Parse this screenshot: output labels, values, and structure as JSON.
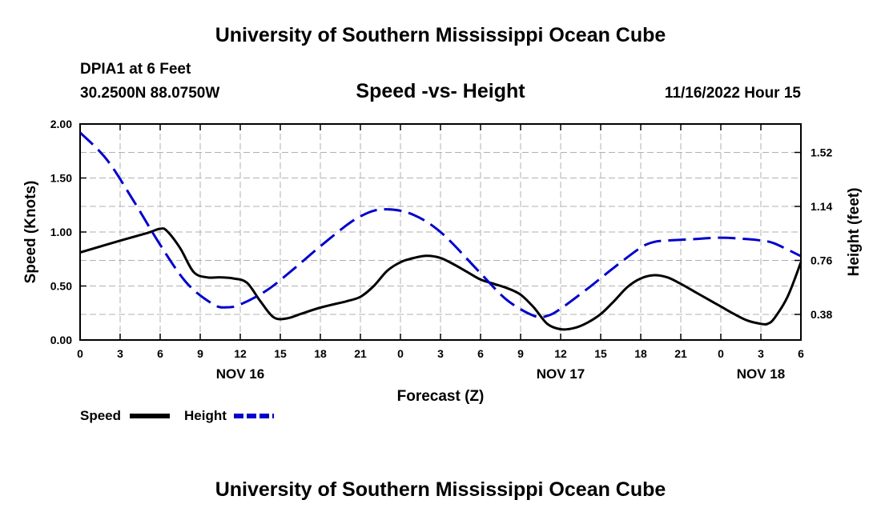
{
  "header": {
    "title": "University of Southern Mississippi Ocean Cube",
    "station": "DPIA1 at 6 Feet",
    "coordinates": "30.2500N   88.0750W",
    "datetime": "11/16/2022 Hour 15"
  },
  "footer": {
    "title": "University of Southern Mississippi Ocean Cube"
  },
  "chart_data": {
    "type": "line",
    "title": "Speed -vs- Height",
    "xlabel": "Forecast (Z)",
    "ylabel": "Speed (Knots)",
    "y2label": "Height (feet)",
    "grid": true,
    "xlim": [
      0,
      54
    ],
    "ylim": [
      0,
      2
    ],
    "y2lim": [
      0.2,
      1.72
    ],
    "x_ticks": [
      0,
      3,
      6,
      9,
      12,
      15,
      18,
      21,
      24,
      27,
      30,
      33,
      36,
      39,
      42,
      45,
      48,
      51,
      54
    ],
    "x_tick_labels": [
      "0",
      "3",
      "6",
      "9",
      "12",
      "15",
      "18",
      "21",
      "0",
      "3",
      "6",
      "9",
      "12",
      "15",
      "18",
      "21",
      "0",
      "3",
      "6"
    ],
    "date_labels": [
      {
        "x": 12,
        "label": "NOV 16"
      },
      {
        "x": 36,
        "label": "NOV 17"
      },
      {
        "x": 51,
        "label": "NOV 18"
      }
    ],
    "y_ticks": [
      0,
      0.5,
      1.0,
      1.5,
      2.0
    ],
    "y_tick_labels": [
      "0.00",
      "0.50",
      "1.00",
      "1.50",
      "2.00"
    ],
    "y2_ticks": [
      0.38,
      0.76,
      1.14,
      1.52
    ],
    "y2_tick_labels": [
      "0.38",
      "0.76",
      "1.14",
      "1.52"
    ],
    "legend_position": "bottom-left",
    "series": [
      {
        "name": "Speed",
        "axis": "left",
        "color": "#000000",
        "style": "solid",
        "x": [
          0,
          3,
          5,
          6,
          6.5,
          7.5,
          8.5,
          9.5,
          10.5,
          11.5,
          12.5,
          13.5,
          14.5,
          15.5,
          16.5,
          18,
          20,
          21,
          22,
          23,
          24,
          25,
          26,
          27,
          28,
          29,
          30,
          31,
          32,
          33,
          34,
          35,
          36,
          37,
          38,
          39,
          40,
          41,
          42,
          43,
          44,
          45,
          46,
          47,
          48,
          49,
          50,
          51,
          51.5,
          52,
          53,
          54
        ],
        "y": [
          0.81,
          0.92,
          0.99,
          1.03,
          1.01,
          0.85,
          0.63,
          0.58,
          0.58,
          0.57,
          0.53,
          0.36,
          0.21,
          0.2,
          0.24,
          0.3,
          0.36,
          0.4,
          0.5,
          0.64,
          0.72,
          0.76,
          0.78,
          0.76,
          0.7,
          0.63,
          0.56,
          0.52,
          0.48,
          0.42,
          0.3,
          0.15,
          0.1,
          0.11,
          0.16,
          0.24,
          0.36,
          0.49,
          0.57,
          0.6,
          0.58,
          0.52,
          0.45,
          0.38,
          0.31,
          0.24,
          0.18,
          0.15,
          0.15,
          0.2,
          0.4,
          0.72
        ]
      },
      {
        "name": "Height",
        "axis": "right",
        "color": "#0000cc",
        "style": "dashed",
        "x": [
          0,
          2,
          4,
          6,
          8,
          10,
          11,
          12,
          14,
          16,
          18,
          20,
          21,
          22,
          23,
          24,
          25,
          26,
          27,
          28,
          30,
          32,
          34,
          35,
          36,
          38,
          40,
          42,
          43,
          44,
          46,
          48,
          50,
          51,
          52,
          54
        ],
        "y": [
          1.66,
          1.47,
          1.18,
          0.87,
          0.6,
          0.45,
          0.43,
          0.45,
          0.55,
          0.7,
          0.86,
          1.01,
          1.07,
          1.11,
          1.12,
          1.11,
          1.08,
          1.03,
          0.96,
          0.87,
          0.67,
          0.48,
          0.37,
          0.37,
          0.42,
          0.56,
          0.71,
          0.85,
          0.89,
          0.9,
          0.91,
          0.92,
          0.91,
          0.9,
          0.88,
          0.79
        ]
      }
    ]
  }
}
